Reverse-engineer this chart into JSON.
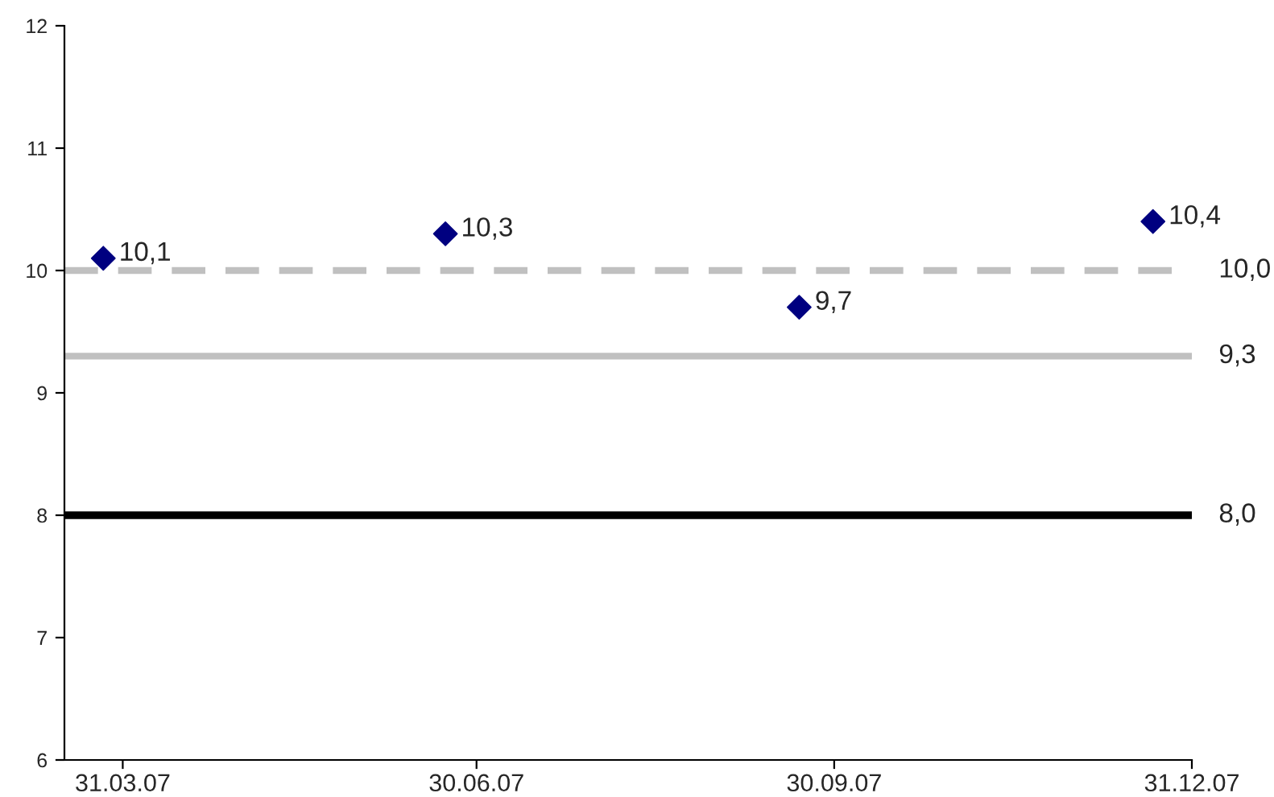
{
  "chart_data": {
    "type": "scatter",
    "x": [
      "2007-03-26",
      "2007-06-22",
      "2007-09-21",
      "2007-12-21"
    ],
    "values": [
      10.1,
      10.3,
      9.7,
      10.4
    ],
    "value_labels": [
      "10,1",
      "10,3",
      "9,7",
      "10,4"
    ],
    "color": "#000080",
    "marker": "diamond",
    "xlim": [
      "2007-03-16",
      "2007-12-31"
    ],
    "xticks": [
      {
        "value": "2007-03-31",
        "label": "31.03.07"
      },
      {
        "value": "2007-06-30",
        "label": "30.06.07"
      },
      {
        "value": "2007-09-30",
        "label": "30.09.07"
      },
      {
        "value": "2007-12-31",
        "label": "31.12.07"
      }
    ],
    "ylim": [
      6,
      12
    ],
    "yticks": [
      6,
      7,
      8,
      9,
      10,
      11,
      12
    ],
    "ref_lines": [
      {
        "axis": "y",
        "value": 10.0,
        "label": "10,0",
        "color": "#c0c0c0",
        "line_style": "dashed"
      },
      {
        "axis": "y",
        "value": 9.3,
        "label": "9,3",
        "color": "#c0c0c0",
        "line_style": "solid"
      },
      {
        "axis": "y",
        "value": 8.0,
        "label": "8,0",
        "color": "#000000",
        "line_style": "solid"
      }
    ],
    "grid": false,
    "legend": false
  }
}
